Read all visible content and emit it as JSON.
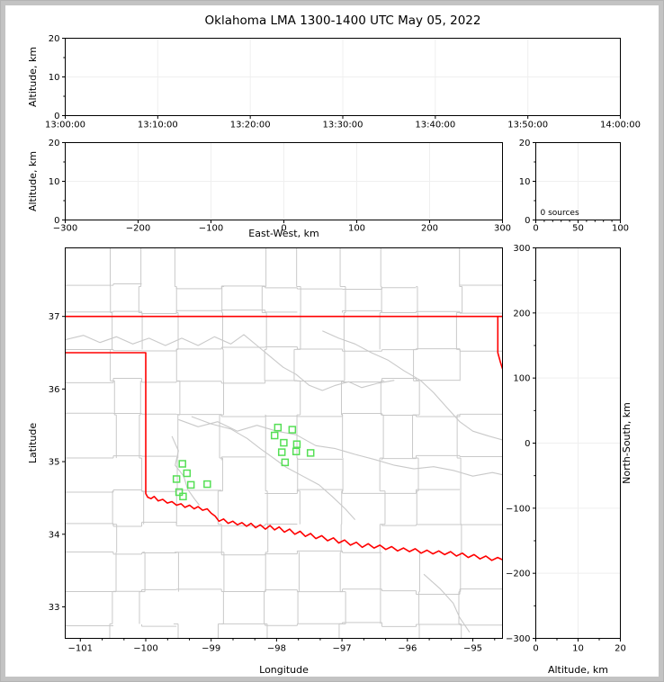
{
  "title": "Oklahoma LMA 1300-1400 UTC May 05, 2022",
  "colors": {
    "background": "#ffffff",
    "frame_gray": "#c3c3c3",
    "axis_black": "#000000",
    "grid_faint": "#efefef",
    "county_gray": "#c9c9c9",
    "river_gray": "#c9c9c9",
    "state_border_red": "#ff0000",
    "station_green": "#55df55"
  },
  "chart_data": [
    {
      "id": "time-altitude",
      "type": "scatter",
      "description": "Altitude vs time panel, no sources plotted",
      "xlabel": "",
      "ylabel": "Altitude, km",
      "xtick_labels": [
        "13:00:00",
        "13:10:00",
        "13:20:00",
        "13:30:00",
        "13:40:00",
        "13:50:00",
        "14:00:00"
      ],
      "ylim": [
        0,
        20
      ],
      "ytick_values": [
        0,
        10,
        20
      ],
      "ytick_labels": [
        "0",
        "10",
        "20"
      ],
      "y_minor": [
        5,
        15
      ],
      "grid_y": [
        10
      ],
      "points": []
    },
    {
      "id": "eastwest-altitude",
      "type": "scatter",
      "description": "Altitude vs East-West distance panel, no sources plotted",
      "xlabel": "East-West, km",
      "ylabel": "Altitude, km",
      "xlim": [
        -300,
        300
      ],
      "xtick_values": [
        -300,
        -200,
        -100,
        0,
        100,
        200,
        300
      ],
      "xtick_labels": [
        "−300",
        "−200",
        "−100",
        "0",
        "100",
        "200",
        "300"
      ],
      "ylim": [
        0,
        20
      ],
      "ytick_values": [
        0,
        10,
        20
      ],
      "ytick_labels": [
        "0",
        "10",
        "20"
      ],
      "y_minor": [
        5,
        15
      ],
      "grid_y": [
        10
      ],
      "points": []
    },
    {
      "id": "altitude-histogram",
      "type": "line",
      "description": "Source-count vs altitude histogram panel",
      "xlabel": "",
      "ylabel": "",
      "xlim": [
        0,
        100
      ],
      "xtick_values": [
        0,
        50,
        100
      ],
      "xtick_labels": [
        "0",
        "50",
        "100"
      ],
      "x_minor": [
        10,
        20,
        30,
        40,
        60,
        70,
        80,
        90
      ],
      "ylim": [
        0,
        20
      ],
      "ytick_values": [
        0,
        10,
        20
      ],
      "ytick_labels": [
        "0",
        "10",
        "20"
      ],
      "y_minor": [
        5,
        15
      ],
      "grid_x": [
        50
      ],
      "grid_y": [
        10
      ],
      "annotation": "0 sources",
      "points": []
    },
    {
      "id": "map",
      "type": "scatter",
      "description": "Plan-view map of Oklahoma with county lines, state borders and LMA stations",
      "xlabel": "Longitude",
      "ylabel": "Latitude",
      "xlim": [
        -101.231,
        -94.546
      ],
      "ylim": [
        32.566,
        37.944
      ],
      "xtick_values": [
        -101,
        -100,
        -99,
        -98,
        -97,
        -96,
        -95
      ],
      "xtick_labels": [
        "−101",
        "−100",
        "−99",
        "−98",
        "−97",
        "−96",
        "−95"
      ],
      "lon_minor_step": 0.33333,
      "ytick_values": [
        33,
        34,
        35,
        36,
        37
      ],
      "ytick_labels": [
        "33",
        "34",
        "35",
        "36",
        "37"
      ],
      "stations": [
        [
          -99.44,
          34.97
        ],
        [
          -99.37,
          34.84
        ],
        [
          -99.53,
          34.76
        ],
        [
          -99.31,
          34.68
        ],
        [
          -99.06,
          34.69
        ],
        [
          -99.49,
          34.58
        ],
        [
          -99.43,
          34.52
        ],
        [
          -97.98,
          35.47
        ],
        [
          -97.76,
          35.44
        ],
        [
          -98.03,
          35.36
        ],
        [
          -97.89,
          35.26
        ],
        [
          -97.69,
          35.24
        ],
        [
          -97.92,
          35.13
        ],
        [
          -97.7,
          35.14
        ],
        [
          -97.48,
          35.12
        ],
        [
          -97.87,
          34.99
        ]
      ],
      "state_borders": [
        {
          "name": "kansas-line-lat37",
          "points": [
            [
              -101.231,
              37.0
            ],
            [
              -94.546,
              37.0
            ]
          ]
        },
        {
          "name": "missouri-arkansas-edge",
          "points": [
            [
              -94.617,
              37.0
            ],
            [
              -94.617,
              36.5
            ],
            [
              -94.575,
              36.36
            ],
            [
              -94.546,
              36.28
            ]
          ]
        },
        {
          "name": "panhandle-and-red-river",
          "points": [
            [
              -101.231,
              36.5
            ],
            [
              -100.0,
              36.5
            ],
            [
              -100.0,
              34.56
            ],
            [
              -99.97,
              34.51
            ],
            [
              -99.92,
              34.49
            ],
            [
              -99.87,
              34.52
            ],
            [
              -99.81,
              34.46
            ],
            [
              -99.74,
              34.48
            ],
            [
              -99.67,
              34.43
            ],
            [
              -99.6,
              34.45
            ],
            [
              -99.53,
              34.4
            ],
            [
              -99.46,
              34.42
            ],
            [
              -99.4,
              34.37
            ],
            [
              -99.33,
              34.4
            ],
            [
              -99.26,
              34.35
            ],
            [
              -99.2,
              34.38
            ],
            [
              -99.13,
              34.33
            ],
            [
              -99.06,
              34.35
            ],
            [
              -99.0,
              34.29
            ],
            [
              -98.94,
              34.25
            ],
            [
              -98.88,
              34.18
            ],
            [
              -98.81,
              34.21
            ],
            [
              -98.74,
              34.15
            ],
            [
              -98.67,
              34.18
            ],
            [
              -98.6,
              34.13
            ],
            [
              -98.53,
              34.16
            ],
            [
              -98.46,
              34.11
            ],
            [
              -98.39,
              34.15
            ],
            [
              -98.32,
              34.09
            ],
            [
              -98.25,
              34.13
            ],
            [
              -98.17,
              34.07
            ],
            [
              -98.1,
              34.12
            ],
            [
              -98.03,
              34.06
            ],
            [
              -97.96,
              34.1
            ],
            [
              -97.88,
              34.03
            ],
            [
              -97.8,
              34.07
            ],
            [
              -97.72,
              34.0
            ],
            [
              -97.64,
              34.04
            ],
            [
              -97.56,
              33.97
            ],
            [
              -97.48,
              34.01
            ],
            [
              -97.4,
              33.94
            ],
            [
              -97.31,
              33.98
            ],
            [
              -97.22,
              33.91
            ],
            [
              -97.13,
              33.95
            ],
            [
              -97.05,
              33.88
            ],
            [
              -96.96,
              33.92
            ],
            [
              -96.87,
              33.85
            ],
            [
              -96.78,
              33.89
            ],
            [
              -96.69,
              33.82
            ],
            [
              -96.6,
              33.87
            ],
            [
              -96.51,
              33.81
            ],
            [
              -96.42,
              33.85
            ],
            [
              -96.33,
              33.79
            ],
            [
              -96.24,
              33.83
            ],
            [
              -96.15,
              33.77
            ],
            [
              -96.06,
              33.81
            ],
            [
              -95.97,
              33.76
            ],
            [
              -95.88,
              33.8
            ],
            [
              -95.79,
              33.74
            ],
            [
              -95.7,
              33.78
            ],
            [
              -95.61,
              33.73
            ],
            [
              -95.52,
              33.77
            ],
            [
              -95.43,
              33.72
            ],
            [
              -95.34,
              33.76
            ],
            [
              -95.25,
              33.7
            ],
            [
              -95.16,
              33.74
            ],
            [
              -95.07,
              33.68
            ],
            [
              -94.98,
              33.72
            ],
            [
              -94.89,
              33.66
            ],
            [
              -94.8,
              33.7
            ],
            [
              -94.71,
              33.64
            ],
            [
              -94.62,
              33.68
            ],
            [
              -94.55,
              33.65
            ]
          ]
        }
      ],
      "rivers": [
        [
          [
            -101.23,
            36.68
          ],
          [
            -100.95,
            36.74
          ],
          [
            -100.7,
            36.64
          ],
          [
            -100.45,
            36.72
          ],
          [
            -100.2,
            36.62
          ],
          [
            -99.95,
            36.7
          ],
          [
            -99.7,
            36.6
          ],
          [
            -99.45,
            36.7
          ],
          [
            -99.2,
            36.6
          ],
          [
            -98.95,
            36.72
          ],
          [
            -98.7,
            36.62
          ],
          [
            -98.5,
            36.75
          ],
          [
            -98.3,
            36.6
          ],
          [
            -98.1,
            36.45
          ],
          [
            -97.9,
            36.3
          ],
          [
            -97.7,
            36.2
          ],
          [
            -97.5,
            36.05
          ],
          [
            -97.3,
            35.98
          ],
          [
            -97.1,
            36.05
          ],
          [
            -96.9,
            36.1
          ],
          [
            -96.7,
            36.02
          ],
          [
            -96.45,
            36.08
          ],
          [
            -96.2,
            36.12
          ]
        ],
        [
          [
            -99.5,
            35.58
          ],
          [
            -99.2,
            35.48
          ],
          [
            -98.9,
            35.55
          ],
          [
            -98.6,
            35.42
          ],
          [
            -98.3,
            35.5
          ],
          [
            -98.0,
            35.42
          ],
          [
            -97.7,
            35.37
          ],
          [
            -97.4,
            35.22
          ],
          [
            -97.1,
            35.18
          ],
          [
            -96.8,
            35.1
          ],
          [
            -96.5,
            35.03
          ],
          [
            -96.2,
            34.95
          ],
          [
            -95.9,
            34.9
          ],
          [
            -95.6,
            34.93
          ],
          [
            -95.3,
            34.88
          ],
          [
            -95.0,
            34.8
          ],
          [
            -94.7,
            34.85
          ],
          [
            -94.55,
            34.82
          ]
        ],
        [
          [
            -97.3,
            36.8
          ],
          [
            -97.05,
            36.7
          ],
          [
            -96.8,
            36.62
          ],
          [
            -96.55,
            36.5
          ],
          [
            -96.3,
            36.4
          ],
          [
            -96.05,
            36.25
          ],
          [
            -95.8,
            36.12
          ],
          [
            -95.6,
            35.95
          ],
          [
            -95.4,
            35.75
          ],
          [
            -95.2,
            35.55
          ],
          [
            -95.0,
            35.42
          ],
          [
            -94.75,
            35.35
          ],
          [
            -94.55,
            35.3
          ]
        ],
        [
          [
            -99.6,
            35.35
          ],
          [
            -99.5,
            35.15
          ],
          [
            -99.55,
            34.95
          ],
          [
            -99.42,
            34.8
          ],
          [
            -99.36,
            34.62
          ],
          [
            -99.25,
            34.48
          ],
          [
            -99.18,
            34.4
          ]
        ],
        [
          [
            -99.3,
            35.62
          ],
          [
            -99.0,
            35.52
          ],
          [
            -98.7,
            35.45
          ],
          [
            -98.45,
            35.32
          ],
          [
            -98.25,
            35.18
          ],
          [
            -98.05,
            35.05
          ],
          [
            -97.85,
            34.92
          ],
          [
            -97.6,
            34.8
          ],
          [
            -97.35,
            34.68
          ],
          [
            -97.15,
            34.52
          ],
          [
            -96.95,
            34.35
          ],
          [
            -96.8,
            34.2
          ]
        ],
        [
          [
            -95.75,
            33.45
          ],
          [
            -95.5,
            33.25
          ],
          [
            -95.3,
            33.05
          ],
          [
            -95.2,
            32.85
          ],
          [
            -95.05,
            32.65
          ]
        ]
      ]
    },
    {
      "id": "northsouth-altitude",
      "type": "scatter",
      "description": "North-South distance vs altitude panel, no sources plotted",
      "xlabel": "Altitude, km",
      "ylabel": "North-South, km",
      "xlim": [
        0,
        20
      ],
      "xtick_values": [
        0,
        10,
        20
      ],
      "xtick_labels": [
        "0",
        "10",
        "20"
      ],
      "x_minor": [
        5,
        15
      ],
      "ylim": [
        -300,
        300
      ],
      "ytick_values": [
        300,
        200,
        100,
        0,
        -100,
        -200,
        -300
      ],
      "ytick_labels": [
        "300",
        "200",
        "100",
        "0",
        "−100",
        "−200",
        "−300"
      ],
      "y_minor": [
        250,
        150,
        50,
        -50,
        -150,
        -250
      ],
      "grid_x": [
        10
      ],
      "grid_y": [
        200,
        100,
        0,
        -100,
        -200
      ],
      "points": []
    }
  ]
}
